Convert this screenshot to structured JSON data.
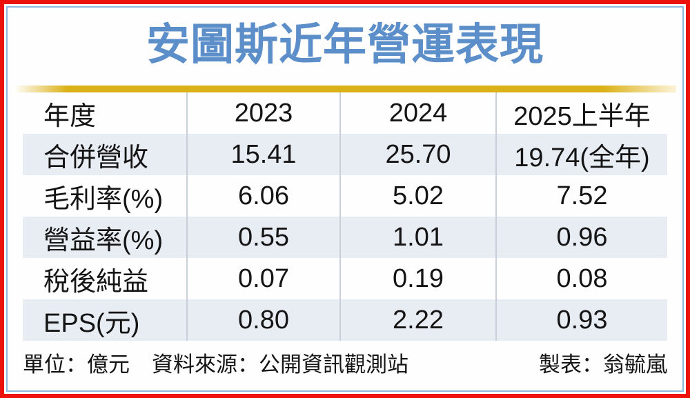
{
  "title": "安圖斯近年營運表現",
  "chart_data": {
    "type": "table",
    "title": "安圖斯近年營運表現",
    "columns": [
      "年度",
      "2023",
      "2024",
      "2025上半年"
    ],
    "rows": [
      [
        "合併營收",
        "15.41",
        "25.70",
        "19.74(全年)"
      ],
      [
        "毛利率(%)",
        "6.06",
        "5.02",
        "7.52"
      ],
      [
        "營益率(%)",
        "0.55",
        "1.01",
        "0.96"
      ],
      [
        "稅後純益",
        "0.07",
        "0.19",
        "0.08"
      ],
      [
        "EPS(元)",
        "0.80",
        "2.22",
        "0.93"
      ]
    ],
    "layout": {
      "grid": "horizontal-banded",
      "alt_row_shading": true,
      "legend_position": "none"
    }
  },
  "footer": {
    "unit_note": "單位：億元",
    "source_note": "資料來源：公開資訊觀測站",
    "credit_note": "製表：翁毓嵐"
  },
  "colors": {
    "border_red": "#ED120B",
    "border_blue": "#8FB9DA",
    "title_blue": "#5C8EC9",
    "gold": "#DBB117",
    "row_alt": "#E8ECF3",
    "divider": "#C9CED8",
    "text": "#141414"
  }
}
